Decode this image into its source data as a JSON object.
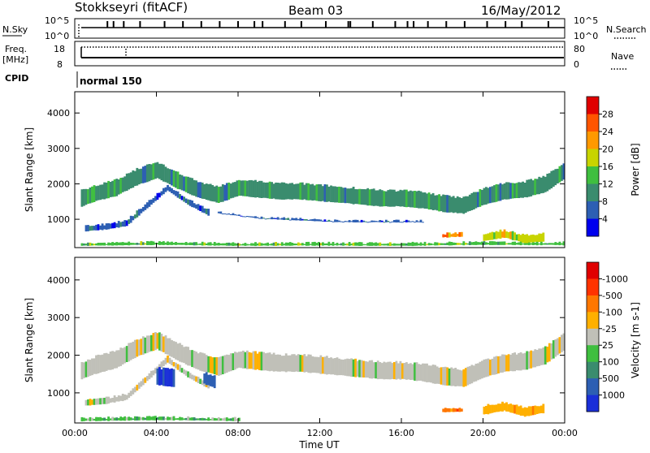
{
  "header": {
    "station": "Stokkseyri (fitACF)",
    "beam": "Beam 03",
    "date": "16/May/2012"
  },
  "top_panels": {
    "nsky_label": "N.Sky",
    "nsky_ticks": [
      "10^5",
      "10^0"
    ],
    "nsearch_label": "N.Search",
    "nsearch_ticks": [
      "10^5",
      "10^0"
    ],
    "freq_label": "Freq.",
    "freq_unit": "[MHz]",
    "freq_ticks": [
      "18",
      "8"
    ],
    "nave_label": "Nave",
    "nave_ticks": [
      "80",
      "0"
    ],
    "cpid_label": "CPID",
    "cpid_value": "normal 150"
  },
  "chart_data": [
    {
      "type": "heatmap",
      "name": "power",
      "ylabel": "Slant Range [km]",
      "yticks": [
        1000,
        2000,
        3000,
        4000
      ],
      "ylim": [
        200,
        4600
      ],
      "xlim": [
        0,
        24
      ],
      "colorbar": {
        "label": "Power [dB]",
        "ticks": [
          "4",
          "8",
          "12",
          "16",
          "20",
          "24",
          "28"
        ],
        "colors": [
          "#0000ee",
          "#2d5fb3",
          "#3a8c6e",
          "#3fbf3f",
          "#c8d400",
          "#ff9900",
          "#ff5500",
          "#e00000"
        ]
      },
      "bands": [
        {
          "points": [
            [
              0.3,
              1600
            ],
            [
              1.0,
              1750
            ],
            [
              2.0,
              1900
            ],
            [
              3.0,
              2200
            ],
            [
              4.0,
              2400
            ],
            [
              5.0,
              2100
            ],
            [
              6.0,
              1850
            ],
            [
              7.0,
              1700
            ],
            [
              8.0,
              1900
            ],
            [
              9.0,
              1850
            ],
            [
              10.0,
              1800
            ],
            [
              11.0,
              1800
            ],
            [
              12.0,
              1750
            ],
            [
              13.0,
              1700
            ],
            [
              14.0,
              1650
            ],
            [
              15.0,
              1600
            ],
            [
              16.0,
              1600
            ],
            [
              17.0,
              1550
            ],
            [
              18.0,
              1450
            ],
            [
              19.0,
              1400
            ],
            [
              20.0,
              1650
            ],
            [
              21.0,
              1800
            ],
            [
              22.0,
              1850
            ],
            [
              23.0,
              2000
            ],
            [
              24.0,
              2400
            ]
          ],
          "width": 500,
          "level": 2
        },
        {
          "points": [
            [
              0.5,
              750
            ],
            [
              1.5,
              800
            ],
            [
              2.5,
              900
            ],
            [
              3.5,
              1400
            ],
            [
              4.5,
              1900
            ],
            [
              5.5,
              1500
            ],
            [
              6.5,
              1200
            ]
          ],
          "width": 200,
          "level": 1
        },
        {
          "points": [
            [
              7.0,
              1200
            ],
            [
              9.0,
              1050
            ],
            [
              11.0,
              1000
            ],
            [
              13.0,
              950
            ],
            [
              15.0,
              950
            ],
            [
              17.0,
              950
            ]
          ],
          "width": 80,
          "level": 1
        },
        {
          "points": [
            [
              0.3,
              300
            ],
            [
              4.0,
              330
            ],
            [
              8.0,
              300
            ],
            [
              12.0,
              310
            ],
            [
              16.0,
              300
            ],
            [
              20.0,
              330
            ],
            [
              24.0,
              320
            ]
          ],
          "width": 120,
          "level": 3
        },
        {
          "points": [
            [
              18.0,
              550
            ],
            [
              19.0,
              580
            ]
          ],
          "width": 150,
          "level": 5
        },
        {
          "points": [
            [
              20.0,
              500
            ],
            [
              21.0,
              600
            ],
            [
              22.0,
              450
            ],
            [
              23.0,
              500
            ]
          ],
          "width": 260,
          "level": 4
        }
      ]
    },
    {
      "type": "heatmap",
      "name": "velocity",
      "ylabel": "Slant Range [km]",
      "xlabel": "Time UT",
      "xticks": [
        "00:00",
        "04:00",
        "08:00",
        "12:00",
        "16:00",
        "20:00",
        "00:00"
      ],
      "yticks": [
        1000,
        2000,
        3000,
        4000
      ],
      "ylim": [
        200,
        4600
      ],
      "xlim": [
        0,
        24
      ],
      "colorbar": {
        "label": "Velocity [m s-1]",
        "ticks": [
          "1000",
          "500",
          "100",
          "25",
          "-25",
          "-100",
          "-500",
          "-1000"
        ],
        "colors": [
          "#1a2fd8",
          "#2d5fb3",
          "#3a8c6e",
          "#3fbf3f",
          "#c0c0b8",
          "#ffb000",
          "#ff7700",
          "#ff3300",
          "#e00000"
        ]
      },
      "bands": [
        {
          "points": [
            [
              0.3,
              1600
            ],
            [
              1.0,
              1750
            ],
            [
              2.0,
              1900
            ],
            [
              3.0,
              2200
            ],
            [
              4.0,
              2400
            ],
            [
              5.0,
              2100
            ],
            [
              6.0,
              1850
            ],
            [
              7.0,
              1700
            ],
            [
              8.0,
              1900
            ],
            [
              9.0,
              1850
            ],
            [
              10.0,
              1800
            ],
            [
              11.0,
              1800
            ],
            [
              12.0,
              1750
            ],
            [
              13.0,
              1700
            ],
            [
              14.0,
              1650
            ],
            [
              15.0,
              1600
            ],
            [
              16.0,
              1600
            ],
            [
              17.0,
              1550
            ],
            [
              18.0,
              1450
            ],
            [
              19.0,
              1400
            ],
            [
              20.0,
              1650
            ],
            [
              21.0,
              1800
            ],
            [
              22.0,
              1850
            ],
            [
              23.0,
              2000
            ],
            [
              24.0,
              2400
            ]
          ],
          "width": 500,
          "level": 4
        },
        {
          "points": [
            [
              0.5,
              750
            ],
            [
              1.5,
              800
            ],
            [
              2.5,
              900
            ],
            [
              3.5,
              1400
            ],
            [
              4.5,
              1900
            ],
            [
              5.5,
              1500
            ],
            [
              6.5,
              1200
            ]
          ],
          "width": 200,
          "level": 4
        },
        {
          "points": [
            [
              4.0,
              1450
            ],
            [
              4.8,
              1400
            ]
          ],
          "width": 500,
          "level": 0
        },
        {
          "points": [
            [
              6.3,
              1400
            ],
            [
              6.8,
              1300
            ]
          ],
          "width": 350,
          "level": 1
        },
        {
          "points": [
            [
              0.3,
              300
            ],
            [
              4.0,
              330
            ],
            [
              8.0,
              300
            ]
          ],
          "width": 120,
          "level": 3
        },
        {
          "points": [
            [
              18.0,
              550
            ],
            [
              19.0,
              560
            ]
          ],
          "width": 150,
          "level": 6
        },
        {
          "points": [
            [
              20.0,
              550
            ],
            [
              21.0,
              650
            ],
            [
              22.0,
              500
            ],
            [
              23.0,
              600
            ]
          ],
          "width": 280,
          "level": 5
        }
      ]
    }
  ],
  "top_series": {
    "nsky_spikes": [
      1.6,
      1.9,
      2.4,
      3.2,
      4.4,
      5.3,
      6.2,
      7.1,
      8.0,
      8.8,
      9.2,
      10.3,
      11.1,
      12.3,
      13.4,
      13.5,
      14.6,
      15.7,
      16.3,
      16.6,
      17.3,
      18.2,
      19.1,
      20.2,
      21.1,
      21.9,
      23.2
    ]
  }
}
